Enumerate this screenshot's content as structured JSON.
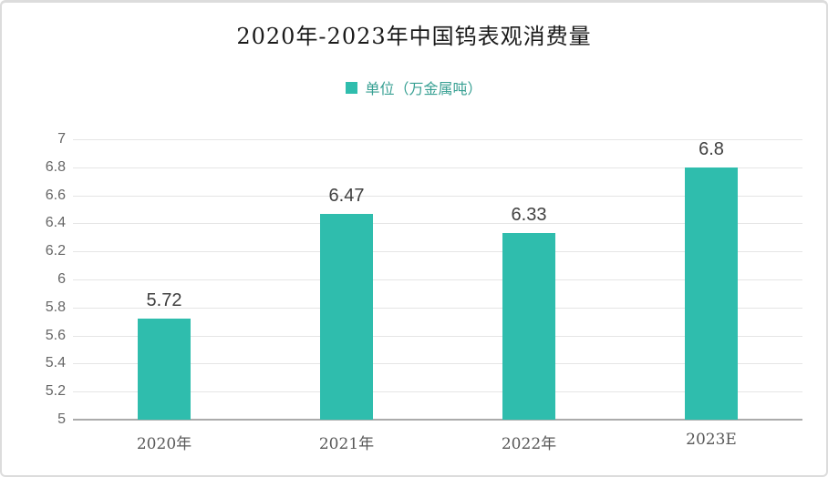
{
  "title": "2020年-2023年中国钨表观消费量",
  "legend": {
    "label": "单位（万金属吨）",
    "swatch_color": "#2fbdad",
    "text_color": "#38a093"
  },
  "chart_data": {
    "type": "bar",
    "categories": [
      "2020年",
      "2021年",
      "2022年",
      "2023E"
    ],
    "values": [
      5.72,
      6.47,
      6.33,
      6.8
    ],
    "value_labels": [
      "5.72",
      "6.47",
      "6.33",
      "6.8"
    ],
    "title": "2020年-2023年中国钨表观消费量",
    "xlabel": "",
    "ylabel": "",
    "ylim": [
      5,
      7
    ],
    "ytick_step": 0.2,
    "ytick_labels": [
      "5",
      "5.2",
      "5.4",
      "5.6",
      "5.8",
      "6",
      "6.2",
      "6.4",
      "6.6",
      "6.8",
      "7"
    ],
    "grid": true,
    "legend_position": "top",
    "legend_entries": [
      "单位（万金属吨）"
    ],
    "bar_color": "#2fbdad"
  },
  "colors": {
    "bar": "#2fbdad",
    "grid_line": "#e5e5e5",
    "axis_line": "#ababab",
    "tick_label": "#666666",
    "value_label": "#404040",
    "title_text": "#1a1a1a",
    "border": "#dcdcdc"
  }
}
